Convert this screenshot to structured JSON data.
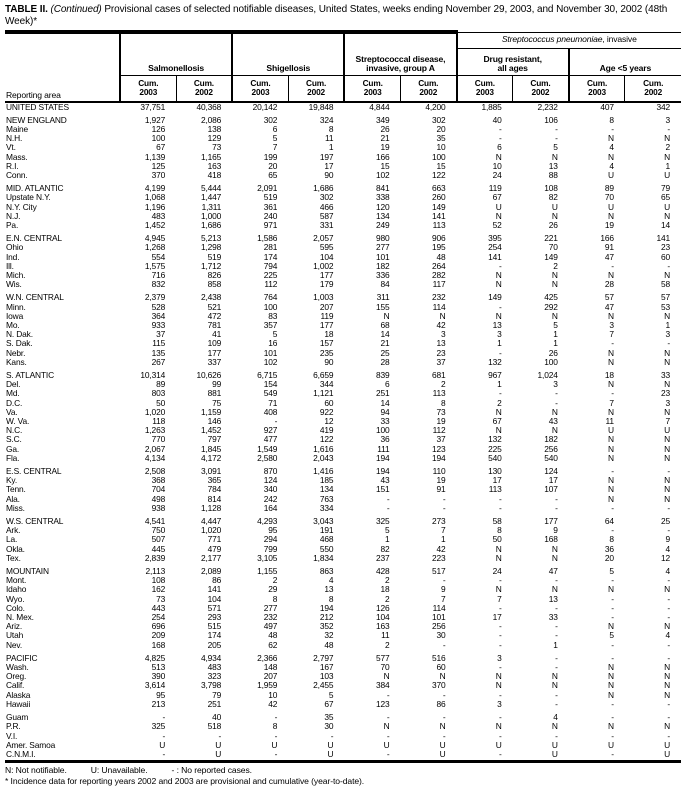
{
  "title": {
    "table_label": "TABLE II.",
    "continued": " (Continued) ",
    "text": "Provisional cases of selected notifiable diseases, United States, weeks ending November 29, 2003, and November 30, 2002 (48th Week)*"
  },
  "header": {
    "reporting_area": "Reporting area",
    "salmonellosis": "Salmonellosis",
    "shigellosis": "Shigellosis",
    "strep_a_line1": "Streptococcal disease,",
    "strep_a_line2": "invasive, group A",
    "spneu_italic": "Streptococcus pneumoniae",
    "spneu_rest": ", invasive",
    "drug_resistant_line1": "Drug resistant,",
    "drug_resistant_line2": "all ages",
    "age_under5": "Age <5 years",
    "cum": "Cum.",
    "years": [
      "2003",
      "2002"
    ]
  },
  "table": {
    "sections": [
      {
        "rows": [
          [
            "UNITED STATES",
            "37,751",
            "40,368",
            "20,142",
            "19,848",
            "4,844",
            "4,200",
            "1,885",
            "2,232",
            "407",
            "342"
          ]
        ]
      },
      {
        "rows": [
          [
            "NEW ENGLAND",
            "1,927",
            "2,086",
            "302",
            "324",
            "349",
            "302",
            "40",
            "106",
            "8",
            "3"
          ],
          [
            "Maine",
            "126",
            "138",
            "6",
            "8",
            "26",
            "20",
            "-",
            "-",
            "-",
            "-"
          ],
          [
            "N.H.",
            "100",
            "129",
            "5",
            "11",
            "21",
            "35",
            "-",
            "-",
            "N",
            "N"
          ],
          [
            "Vt.",
            "67",
            "73",
            "7",
            "1",
            "19",
            "10",
            "6",
            "5",
            "4",
            "2"
          ],
          [
            "Mass.",
            "1,139",
            "1,165",
            "199",
            "197",
            "166",
            "100",
            "N",
            "N",
            "N",
            "N"
          ],
          [
            "R.I.",
            "125",
            "163",
            "20",
            "17",
            "15",
            "15",
            "10",
            "13",
            "4",
            "1"
          ],
          [
            "Conn.",
            "370",
            "418",
            "65",
            "90",
            "102",
            "122",
            "24",
            "88",
            "U",
            "U"
          ]
        ]
      },
      {
        "rows": [
          [
            "MID. ATLANTIC",
            "4,199",
            "5,444",
            "2,091",
            "1,686",
            "841",
            "663",
            "119",
            "108",
            "89",
            "79"
          ],
          [
            "Upstate N.Y.",
            "1,068",
            "1,447",
            "519",
            "302",
            "338",
            "260",
            "67",
            "82",
            "70",
            "65"
          ],
          [
            "N.Y. City",
            "1,196",
            "1,311",
            "361",
            "466",
            "120",
            "149",
            "U",
            "U",
            "U",
            "U"
          ],
          [
            "N.J.",
            "483",
            "1,000",
            "240",
            "587",
            "134",
            "141",
            "N",
            "N",
            "N",
            "N"
          ],
          [
            "Pa.",
            "1,452",
            "1,686",
            "971",
            "331",
            "249",
            "113",
            "52",
            "26",
            "19",
            "14"
          ]
        ]
      },
      {
        "rows": [
          [
            "E.N. CENTRAL",
            "4,945",
            "5,213",
            "1,586",
            "2,057",
            "980",
            "906",
            "395",
            "221",
            "166",
            "141"
          ],
          [
            "Ohio",
            "1,268",
            "1,298",
            "281",
            "595",
            "277",
            "195",
            "254",
            "70",
            "91",
            "23"
          ],
          [
            "Ind.",
            "554",
            "519",
            "174",
            "104",
            "101",
            "48",
            "141",
            "149",
            "47",
            "60"
          ],
          [
            "Ill.",
            "1,575",
            "1,712",
            "794",
            "1,002",
            "182",
            "264",
            "-",
            "2",
            "-",
            "-"
          ],
          [
            "Mich.",
            "716",
            "826",
            "225",
            "177",
            "336",
            "282",
            "N",
            "N",
            "N",
            "N"
          ],
          [
            "Wis.",
            "832",
            "858",
            "112",
            "179",
            "84",
            "117",
            "N",
            "N",
            "28",
            "58"
          ]
        ]
      },
      {
        "rows": [
          [
            "W.N. CENTRAL",
            "2,379",
            "2,438",
            "764",
            "1,003",
            "311",
            "232",
            "149",
            "425",
            "57",
            "57"
          ],
          [
            "Minn.",
            "528",
            "521",
            "100",
            "207",
            "155",
            "114",
            "-",
            "292",
            "47",
            "53"
          ],
          [
            "Iowa",
            "364",
            "472",
            "83",
            "119",
            "N",
            "N",
            "N",
            "N",
            "N",
            "N"
          ],
          [
            "Mo.",
            "933",
            "781",
            "357",
            "177",
            "68",
            "42",
            "13",
            "5",
            "3",
            "1"
          ],
          [
            "N. Dak.",
            "37",
            "41",
            "5",
            "18",
            "14",
            "3",
            "3",
            "1",
            "7",
            "3"
          ],
          [
            "S. Dak.",
            "115",
            "109",
            "16",
            "157",
            "21",
            "13",
            "1",
            "1",
            "-",
            "-"
          ],
          [
            "Nebr.",
            "135",
            "177",
            "101",
            "235",
            "25",
            "23",
            "-",
            "26",
            "N",
            "N"
          ],
          [
            "Kans.",
            "267",
            "337",
            "102",
            "90",
            "28",
            "37",
            "132",
            "100",
            "N",
            "N"
          ]
        ]
      },
      {
        "rows": [
          [
            "S. ATLANTIC",
            "10,314",
            "10,626",
            "6,715",
            "6,659",
            "839",
            "681",
            "967",
            "1,024",
            "18",
            "33"
          ],
          [
            "Del.",
            "89",
            "99",
            "154",
            "344",
            "6",
            "2",
            "1",
            "3",
            "N",
            "N"
          ],
          [
            "Md.",
            "803",
            "881",
            "549",
            "1,121",
            "251",
            "113",
            "-",
            "-",
            "-",
            "23"
          ],
          [
            "D.C.",
            "50",
            "75",
            "71",
            "60",
            "14",
            "8",
            "2",
            "-",
            "7",
            "3"
          ],
          [
            "Va.",
            "1,020",
            "1,159",
            "408",
            "922",
            "94",
            "73",
            "N",
            "N",
            "N",
            "N"
          ],
          [
            "W. Va.",
            "118",
            "146",
            "-",
            "12",
            "33",
            "19",
            "67",
            "43",
            "11",
            "7"
          ],
          [
            "N.C.",
            "1,263",
            "1,452",
            "927",
            "419",
            "100",
            "112",
            "N",
            "N",
            "U",
            "U"
          ],
          [
            "S.C.",
            "770",
            "797",
            "477",
            "122",
            "36",
            "37",
            "132",
            "182",
            "N",
            "N"
          ],
          [
            "Ga.",
            "2,067",
            "1,845",
            "1,549",
            "1,616",
            "111",
            "123",
            "225",
            "256",
            "N",
            "N"
          ],
          [
            "Fla.",
            "4,134",
            "4,172",
            "2,580",
            "2,043",
            "194",
            "194",
            "540",
            "540",
            "N",
            "N"
          ]
        ]
      },
      {
        "rows": [
          [
            "E.S. CENTRAL",
            "2,508",
            "3,091",
            "870",
            "1,416",
            "194",
            "110",
            "130",
            "124",
            "-",
            "-"
          ],
          [
            "Ky.",
            "368",
            "365",
            "124",
            "185",
            "43",
            "19",
            "17",
            "17",
            "N",
            "N"
          ],
          [
            "Tenn.",
            "704",
            "784",
            "340",
            "134",
            "151",
            "91",
            "113",
            "107",
            "N",
            "N"
          ],
          [
            "Ala.",
            "498",
            "814",
            "242",
            "763",
            "-",
            "-",
            "-",
            "-",
            "N",
            "N"
          ],
          [
            "Miss.",
            "938",
            "1,128",
            "164",
            "334",
            "-",
            "-",
            "-",
            "-",
            "-",
            "-"
          ]
        ]
      },
      {
        "rows": [
          [
            "W.S. CENTRAL",
            "4,541",
            "4,447",
            "4,293",
            "3,043",
            "325",
            "273",
            "58",
            "177",
            "64",
            "25"
          ],
          [
            "Ark.",
            "750",
            "1,020",
            "95",
            "191",
            "5",
            "7",
            "8",
            "9",
            "-",
            "-"
          ],
          [
            "La.",
            "507",
            "771",
            "294",
            "468",
            "1",
            "1",
            "50",
            "168",
            "8",
            "9"
          ],
          [
            "Okla.",
            "445",
            "479",
            "799",
            "550",
            "82",
            "42",
            "N",
            "N",
            "36",
            "4"
          ],
          [
            "Tex.",
            "2,839",
            "2,177",
            "3,105",
            "1,834",
            "237",
            "223",
            "N",
            "N",
            "20",
            "12"
          ]
        ]
      },
      {
        "rows": [
          [
            "MOUNTAIN",
            "2,113",
            "2,089",
            "1,155",
            "863",
            "428",
            "517",
            "24",
            "47",
            "5",
            "4"
          ],
          [
            "Mont.",
            "108",
            "86",
            "2",
            "4",
            "2",
            "-",
            "-",
            "-",
            "-",
            "-"
          ],
          [
            "Idaho",
            "162",
            "141",
            "29",
            "13",
            "18",
            "9",
            "N",
            "N",
            "N",
            "N"
          ],
          [
            "Wyo.",
            "73",
            "104",
            "8",
            "8",
            "2",
            "7",
            "7",
            "13",
            "-",
            "-"
          ],
          [
            "Colo.",
            "443",
            "571",
            "277",
            "194",
            "126",
            "114",
            "-",
            "-",
            "-",
            "-"
          ],
          [
            "N. Mex.",
            "254",
            "293",
            "232",
            "212",
            "104",
            "101",
            "17",
            "33",
            "-",
            "-"
          ],
          [
            "Ariz.",
            "696",
            "515",
            "497",
            "352",
            "163",
            "256",
            "-",
            "-",
            "N",
            "N"
          ],
          [
            "Utah",
            "209",
            "174",
            "48",
            "32",
            "11",
            "30",
            "-",
            "-",
            "5",
            "4"
          ],
          [
            "Nev.",
            "168",
            "205",
            "62",
            "48",
            "2",
            "-",
            "-",
            "1",
            "-",
            "-"
          ]
        ]
      },
      {
        "rows": [
          [
            "PACIFIC",
            "4,825",
            "4,934",
            "2,366",
            "2,797",
            "577",
            "516",
            "3",
            "-",
            "-",
            "-"
          ],
          [
            "Wash.",
            "513",
            "483",
            "148",
            "167",
            "70",
            "60",
            "-",
            "-",
            "N",
            "N"
          ],
          [
            "Oreg.",
            "390",
            "323",
            "207",
            "103",
            "N",
            "N",
            "N",
            "N",
            "N",
            "N"
          ],
          [
            "Calif.",
            "3,614",
            "3,798",
            "1,959",
            "2,455",
            "384",
            "370",
            "N",
            "N",
            "N",
            "N"
          ],
          [
            "Alaska",
            "95",
            "79",
            "10",
            "5",
            "-",
            "-",
            "-",
            "-",
            "N",
            "N"
          ],
          [
            "Hawaii",
            "213",
            "251",
            "42",
            "67",
            "123",
            "86",
            "3",
            "-",
            "-",
            "-"
          ]
        ]
      },
      {
        "rows": [
          [
            "Guam",
            "-",
            "40",
            "-",
            "35",
            "-",
            "-",
            "-",
            "4",
            "-",
            "-"
          ],
          [
            "P.R.",
            "325",
            "518",
            "8",
            "30",
            "N",
            "N",
            "N",
            "N",
            "N",
            "N"
          ],
          [
            "V.I.",
            "-",
            "-",
            "-",
            "-",
            "-",
            "-",
            "-",
            "-",
            "-",
            "-"
          ],
          [
            "Amer. Samoa",
            "U",
            "U",
            "U",
            "U",
            "U",
            "U",
            "U",
            "U",
            "U",
            "U"
          ],
          [
            "C.N.M.I.",
            "-",
            "U",
            "-",
            "U",
            "-",
            "U",
            "-",
            "U",
            "-",
            "U"
          ]
        ]
      }
    ]
  },
  "footnotes": {
    "line1_a": "N: Not notifiable.",
    "line1_b": "U: Unavailable.",
    "line1_c": "- : No reported cases.",
    "line2": "* Incidence data for reporting years 2002 and 2003 are provisional and cumulative (year-to-date)."
  }
}
